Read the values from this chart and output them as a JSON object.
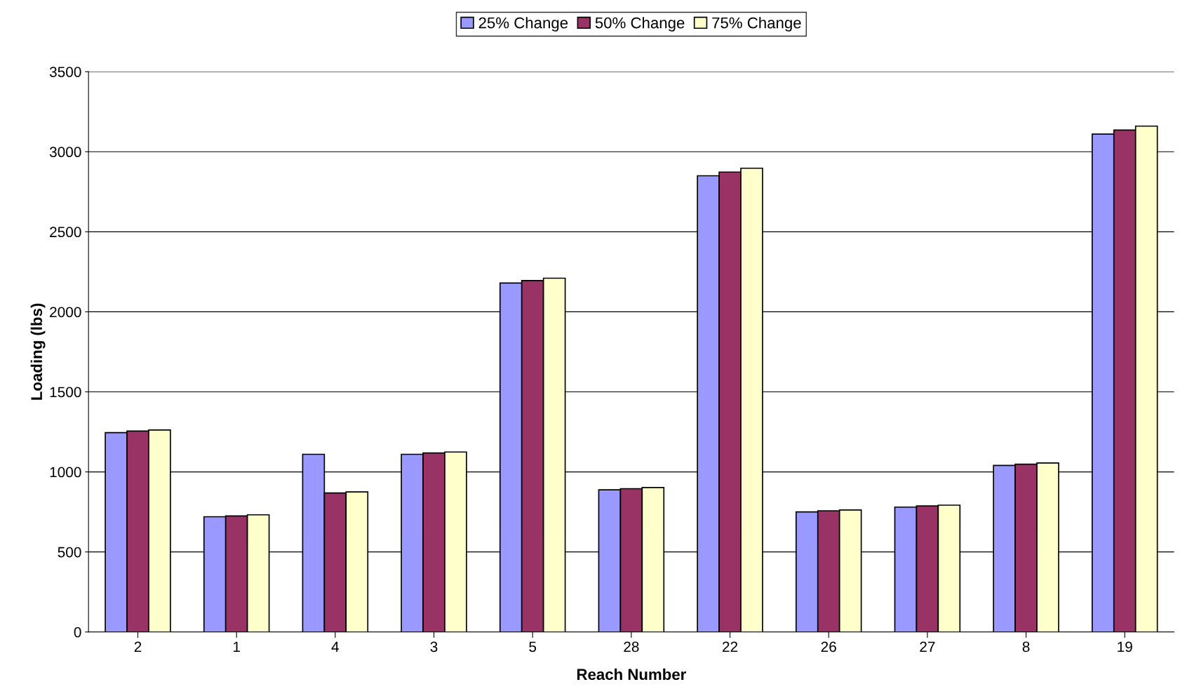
{
  "chart_data": {
    "type": "bar",
    "xlabel": "Reach Number",
    "ylabel": "Loading (lbs)",
    "categories": [
      "2",
      "1",
      "4",
      "3",
      "5",
      "28",
      "22",
      "26",
      "27",
      "8",
      "19"
    ],
    "series": [
      {
        "name": "25% Change",
        "color": "#9999ff",
        "values": [
          1245,
          720,
          1110,
          1110,
          2180,
          888,
          2850,
          750,
          780,
          1040,
          3110
        ]
      },
      {
        "name": "50% Change",
        "color": "#993366",
        "values": [
          1255,
          725,
          868,
          1118,
          2195,
          895,
          2873,
          757,
          787,
          1048,
          3135
        ]
      },
      {
        "name": "75% Change",
        "color": "#ffffcc",
        "values": [
          1262,
          732,
          875,
          1124,
          2210,
          902,
          2897,
          762,
          792,
          1056,
          3160
        ]
      }
    ],
    "ylim": [
      0,
      3500
    ],
    "yticks": [
      0,
      500,
      1000,
      1500,
      2000,
      2500,
      3000,
      3500
    ],
    "grid": "y",
    "legend": "top"
  }
}
